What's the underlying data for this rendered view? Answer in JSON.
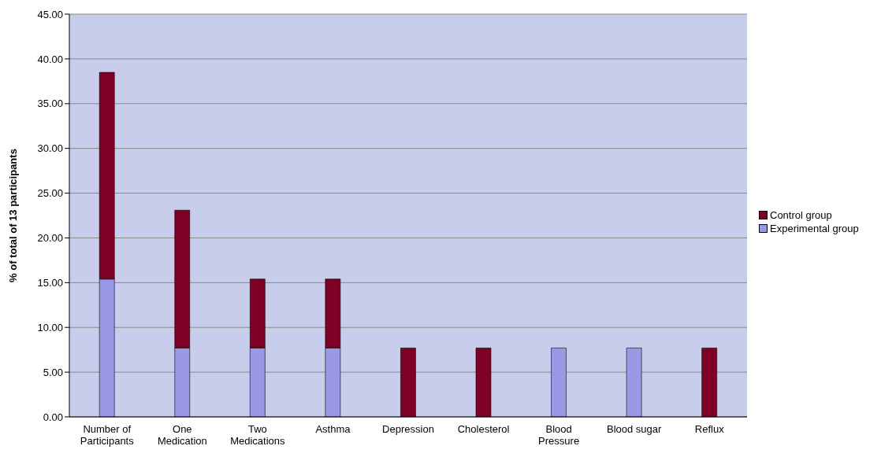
{
  "chart_data": {
    "type": "bar",
    "ylabel": "% of total of 13 participants",
    "categories": [
      "Number of Participants",
      "One Medication",
      "Two Medications",
      "Asthma",
      "Depression",
      "Cholesterol",
      "Blood Pressure",
      "Blood sugar",
      "Reflux"
    ],
    "series": [
      {
        "name": "Experimental group",
        "color": "#9999e6",
        "values": [
          15.4,
          7.7,
          7.7,
          7.7,
          0,
          0,
          7.7,
          7.7,
          0
        ]
      },
      {
        "name": "Control group",
        "color": "#7f0025",
        "values": [
          23.1,
          15.4,
          7.7,
          7.7,
          7.7,
          7.7,
          0,
          0,
          7.7
        ]
      }
    ],
    "stacked": true,
    "ylim": [
      0,
      45
    ],
    "yticks": [
      {
        "value": 0,
        "label": "0.00"
      },
      {
        "value": 5,
        "label": "5.00"
      },
      {
        "value": 10,
        "label": "10.00"
      },
      {
        "value": 15,
        "label": "15.00"
      },
      {
        "value": 20,
        "label": "20.00"
      },
      {
        "value": 25,
        "label": "25.00"
      },
      {
        "value": 30,
        "label": "30.00"
      },
      {
        "value": 35,
        "label": "35.00"
      },
      {
        "value": 40,
        "label": "40.00"
      },
      {
        "value": 45,
        "label": "45.00"
      }
    ],
    "grid": "y",
    "legend": "right"
  }
}
